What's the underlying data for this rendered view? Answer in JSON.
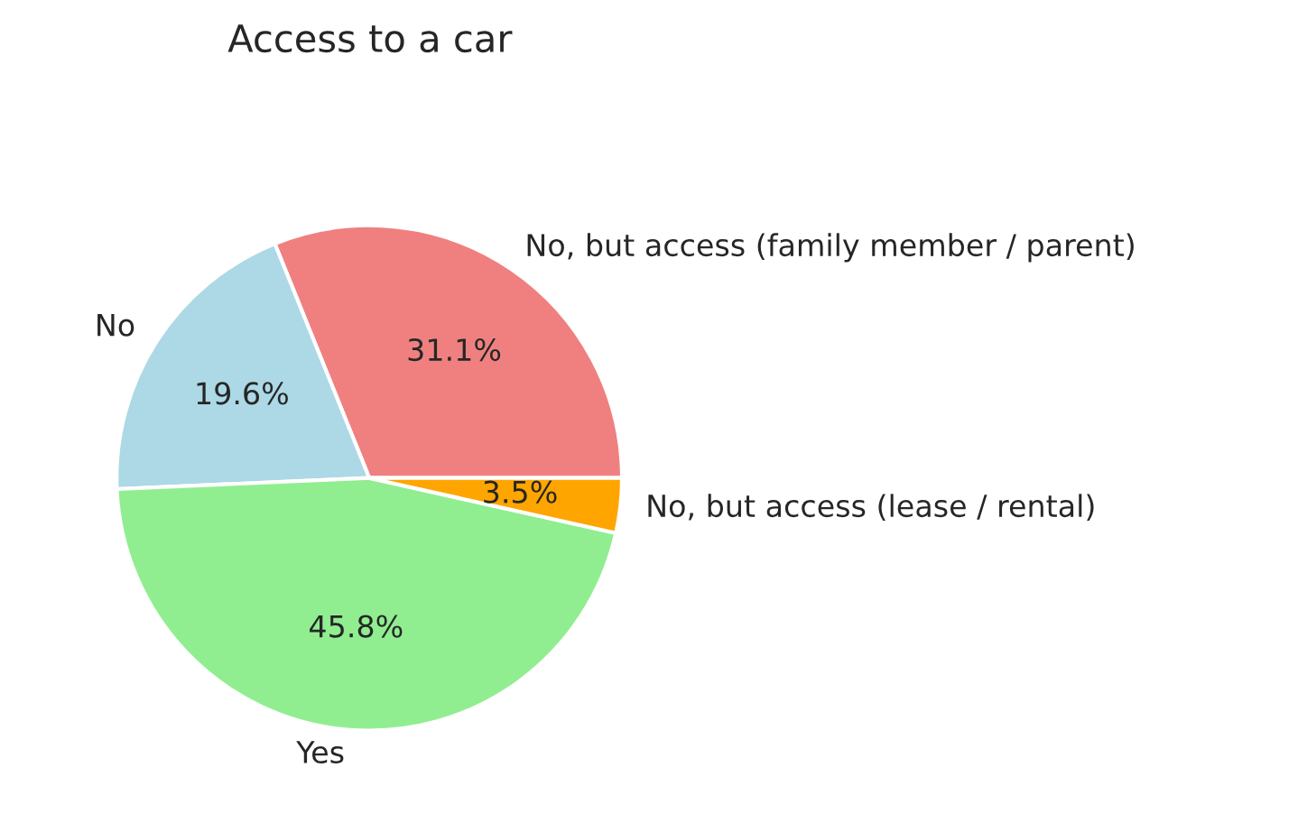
{
  "chart_data": {
    "type": "pie",
    "title": "Access to a car",
    "categories": [
      "No, but access (family member / parent)",
      "No",
      "Yes",
      "No, but access (lease / rental)"
    ],
    "values": [
      31.1,
      19.6,
      45.8,
      3.5
    ],
    "value_labels": [
      "31.1%",
      "19.6%",
      "45.8%",
      "3.5%"
    ],
    "colors": [
      "#f08080",
      "#add8e6",
      "#90ee90",
      "#ffa500"
    ]
  }
}
